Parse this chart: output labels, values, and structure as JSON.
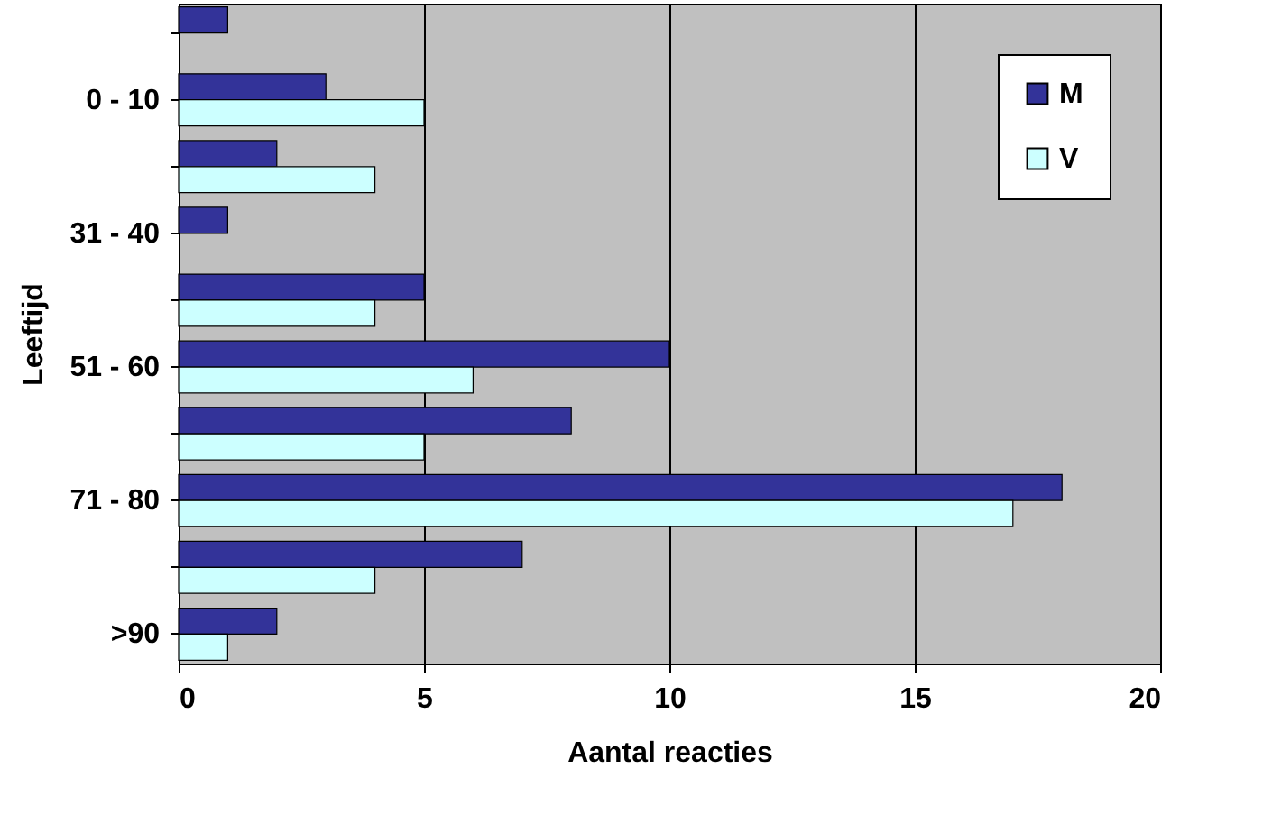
{
  "chart_data": {
    "type": "bar",
    "orientation": "horizontal",
    "xlabel": "Aantal reacties",
    "ylabel": "Leeftijd",
    "categories": [
      null,
      "0 - 10",
      null,
      "31 - 40",
      null,
      "51 - 60",
      null,
      "71 - 80",
      null,
      ">90"
    ],
    "series": [
      {
        "name": "M",
        "color": "#333399",
        "values": [
          1,
          3,
          2,
          1,
          5,
          10,
          8,
          18,
          7,
          2
        ]
      },
      {
        "name": "V",
        "color": "#ccffff",
        "values": [
          null,
          5,
          4,
          null,
          4,
          6,
          5,
          17,
          4,
          1
        ]
      }
    ],
    "xlim": [
      0,
      20
    ],
    "xticks": [
      0,
      5,
      10,
      15,
      20
    ],
    "grid": "x",
    "legend": "top right"
  }
}
